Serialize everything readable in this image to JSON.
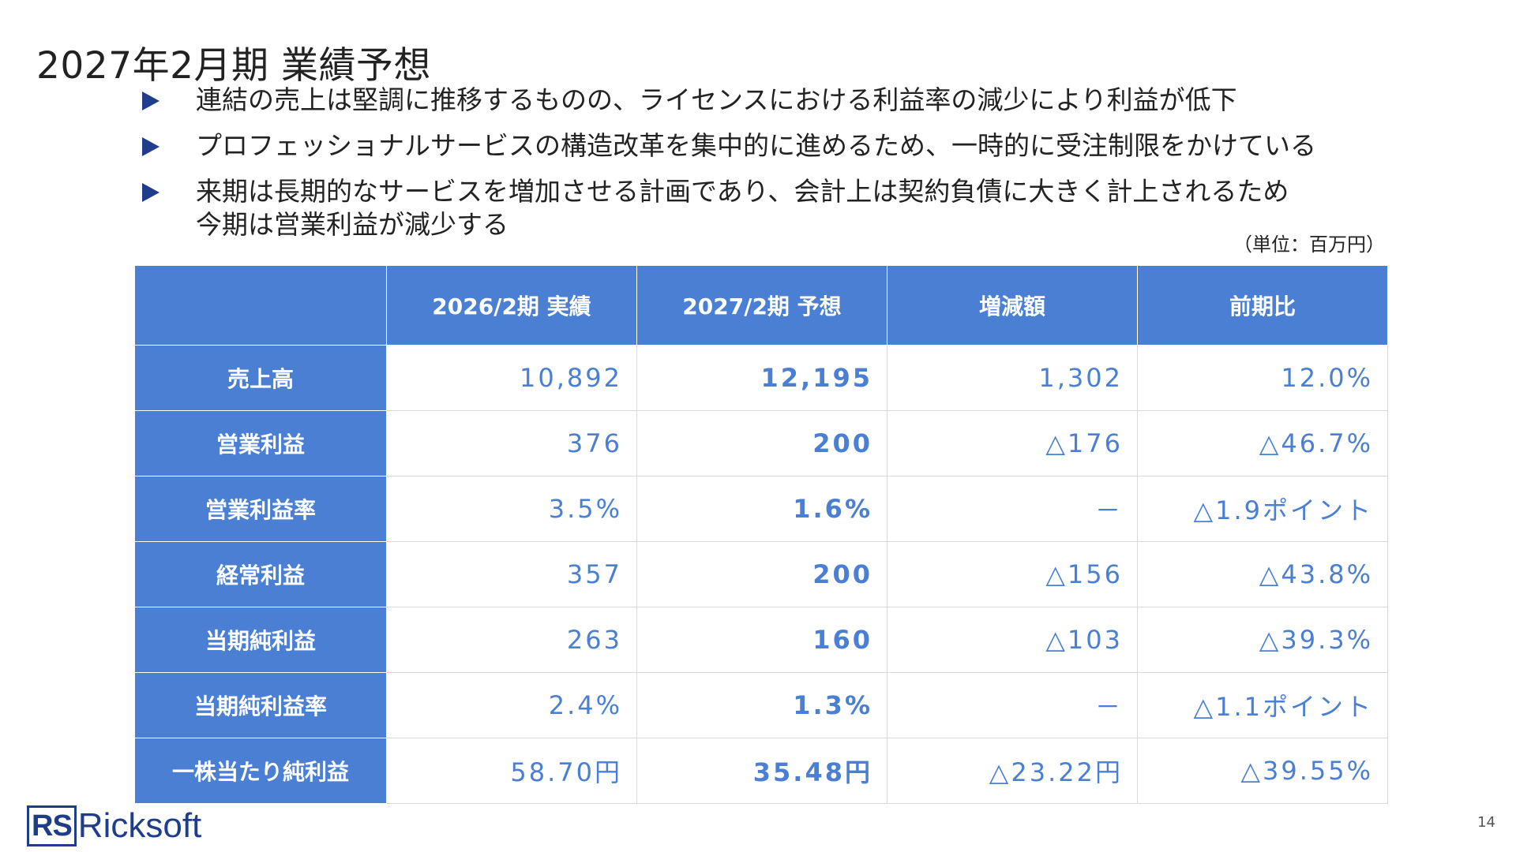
{
  "title": "2027年2月期 業績予想",
  "bullets": [
    {
      "lines": [
        "連結の売上は堅調に推移するものの、ライセンスにおける利益率の減少により利益が低下"
      ]
    },
    {
      "lines": [
        "プロフェッショナルサービスの構造改革を集中的に進めるため、一時的に受注制限をかけている"
      ]
    },
    {
      "lines": [
        "来期は長期的なサービスを増加させる計画であり、会計上は契約負債に大きく計上されるため",
        "今期は営業利益が減少する"
      ]
    }
  ],
  "unit_note": "（単位：百万円）",
  "table": {
    "corner": "",
    "headers": [
      "2026/2期 実績",
      "2027/2期 予想",
      "増減額",
      "前期比"
    ],
    "rows": [
      {
        "label": "売上高",
        "cells": [
          "10,892",
          "12,195",
          "1,302",
          "12.0%"
        ]
      },
      {
        "label": "営業利益",
        "cells": [
          "376",
          "200",
          "△176",
          "△46.7%"
        ]
      },
      {
        "label": "営業利益率",
        "cells": [
          "3.5%",
          "1.6%",
          "－",
          "△1.9ポイント"
        ]
      },
      {
        "label": "経常利益",
        "cells": [
          "357",
          "200",
          "△156",
          "△43.8%"
        ]
      },
      {
        "label": "当期純利益",
        "cells": [
          "263",
          "160",
          "△103",
          "△39.3%"
        ]
      },
      {
        "label": "当期純利益率",
        "cells": [
          "2.4%",
          "1.3%",
          "－",
          "△1.1ポイント"
        ]
      },
      {
        "label": "一株当たり純利益",
        "cells": [
          "58.70円",
          "35.48円",
          "△23.22円",
          "△39.55%"
        ]
      }
    ]
  },
  "logo": {
    "mark": "RS",
    "wordmark": "Ricksoft"
  },
  "page_number": "14",
  "colors": {
    "header_blue": "#4a7fd4",
    "value_blue": "#4a7fd4",
    "bullet_navy": "#1f3d8a",
    "logo_navy": "#1f3d8a"
  },
  "icons": {
    "bullet": "triangle-right-icon"
  }
}
